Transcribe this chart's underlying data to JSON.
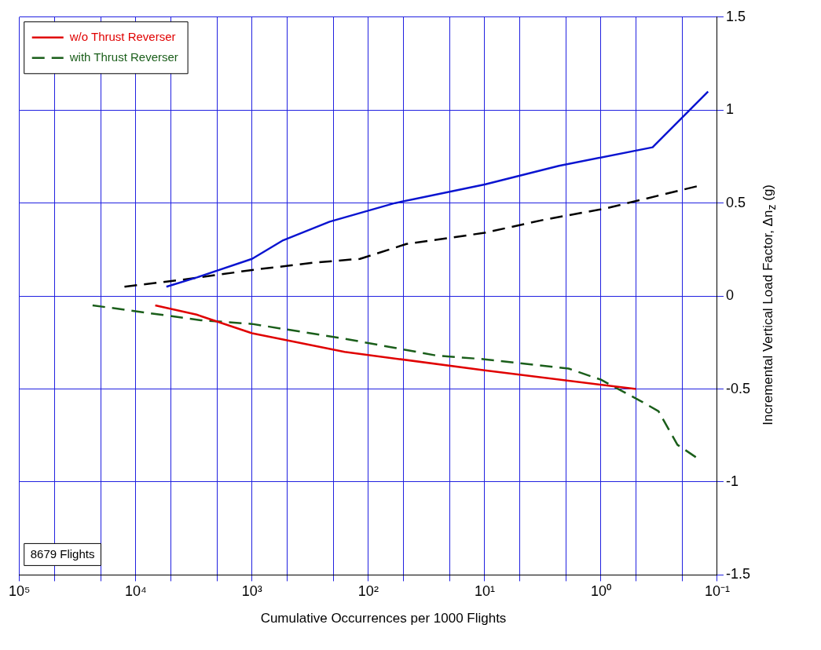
{
  "chart_data": {
    "type": "line",
    "xlabel": "Cumulative Occurrences per 1000 Flights",
    "ylabel": "Incremental Vertical Load Factor, Δn$_{z}$ (g)",
    "log": "x",
    "grid": true,
    "legend": "top left",
    "marker": "none",
    "xlim": [
      100000,
      0.1
    ],
    "ylim": [
      -1.5,
      1.5
    ],
    "xticks": [
      {
        "value": 100000,
        "label": "10⁵"
      },
      {
        "value": 50000,
        "label": null
      },
      {
        "value": 20000,
        "label": null
      },
      {
        "value": 10000,
        "label": "10⁴"
      },
      {
        "value": 5000,
        "label": null
      },
      {
        "value": 2000,
        "label": null
      },
      {
        "value": 1000,
        "label": "10³"
      },
      {
        "value": 500,
        "label": null
      },
      {
        "value": 200,
        "label": null
      },
      {
        "value": 100,
        "label": "10²"
      },
      {
        "value": 50,
        "label": null
      },
      {
        "value": 20,
        "label": null
      },
      {
        "value": 10,
        "label": "10¹"
      },
      {
        "value": 5,
        "label": null
      },
      {
        "value": 2,
        "label": null
      },
      {
        "value": 1,
        "label": "10⁰"
      },
      {
        "value": 0.5,
        "label": null
      },
      {
        "value": 0.2,
        "label": null
      },
      {
        "value": 0.1,
        "label": "10⁻¹"
      }
    ],
    "yticks": [
      -1.5,
      -1,
      -0.5,
      0,
      0.5,
      1,
      1.5
    ],
    "annotations": [
      "8679 Flights"
    ],
    "series": [
      {
        "name": "w/o Thrust Reverser",
        "color": "#e00000",
        "line_style": "solid",
        "x": [
          6800,
          3000,
          1000,
          160,
          10,
          0.5
        ],
        "values": [
          -0.05,
          -0.1,
          -0.2,
          -0.3,
          -0.4,
          -0.5
        ]
      },
      {
        "name": "with Thrust Reverser",
        "color": "#1a5e1a",
        "line_style": "dashed",
        "x": [
          23500,
          2750,
          1000,
          158,
          26,
          10,
          1.9,
          1,
          0.44,
          0.32,
          0.22,
          0.15
        ],
        "values": [
          -0.05,
          -0.13,
          -0.15,
          -0.23,
          -0.32,
          -0.34,
          -0.39,
          -0.45,
          -0.57,
          -0.62,
          -0.8,
          -0.87
        ]
      },
      {
        "color": "#0a14d0",
        "line_style": "solid",
        "x": [
          5450,
          2980,
          1000,
          540,
          215,
          59,
          10,
          2.3,
          0.36,
          0.12
        ],
        "values": [
          0.05,
          0.1,
          0.2,
          0.3,
          0.4,
          0.5,
          0.6,
          0.7,
          0.8,
          1.1
        ]
      },
      {
        "color": "#000000",
        "line_style": "dashed",
        "x": [
          12500,
          3700,
          1000,
          290,
          118,
          47,
          10,
          3.1,
          0.93,
          0.15
        ],
        "values": [
          0.05,
          0.09,
          0.14,
          0.18,
          0.2,
          0.28,
          0.34,
          0.41,
          0.47,
          0.59
        ]
      }
    ]
  }
}
